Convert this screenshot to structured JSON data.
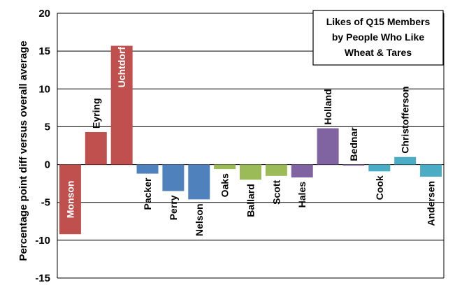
{
  "chart_data": {
    "type": "bar",
    "title": [
      "Likes of Q15 Members",
      "by People Who Like",
      "Wheat & Tares"
    ],
    "xlabel": "",
    "ylabel": "Percentage point  diff versus overall average",
    "ylim": [
      -15,
      20
    ],
    "yticks": [
      "20",
      "15",
      "10",
      "5",
      "0",
      "-5",
      "-10",
      "-15"
    ],
    "grid": true,
    "categories": [
      "Monson",
      "Eyring",
      "Uchtdorf",
      "Packer",
      "Perry",
      "Nelson",
      "Oaks",
      "Ballard",
      "Scott",
      "Hales",
      "Holland",
      "Bednar",
      "Cook",
      "Christofferson",
      "Andersen"
    ],
    "values": [
      -9.2,
      4.3,
      15.7,
      -1.2,
      -3.5,
      -4.6,
      -0.6,
      -2.0,
      -1.5,
      -1.7,
      4.8,
      -0.1,
      -0.9,
      1.0,
      -1.6
    ],
    "colors": [
      "#c0504d",
      "#c0504d",
      "#c0504d",
      "#4f81bd",
      "#4f81bd",
      "#4f81bd",
      "#9bbb59",
      "#9bbb59",
      "#9bbb59",
      "#8064a2",
      "#8064a2",
      "#8064a2",
      "#4bacc6",
      "#4bacc6",
      "#4bacc6"
    ],
    "label_colors": [
      "#ffffff",
      "#000000",
      "#ffffff",
      "#000000",
      "#000000",
      "#000000",
      "#000000",
      "#000000",
      "#000000",
      "#000000",
      "#000000",
      "#000000",
      "#000000",
      "#000000",
      "#000000"
    ]
  }
}
